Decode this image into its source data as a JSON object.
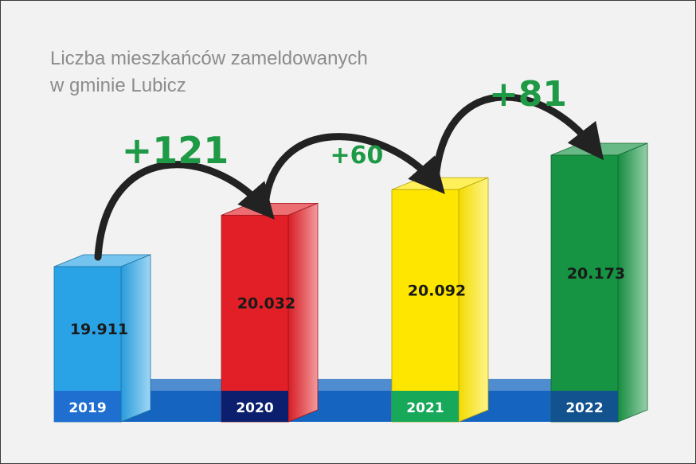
{
  "chart_data": {
    "type": "bar",
    "title_lines": [
      "Liczba mieszkańców zameldowanych",
      "w gminie Lubicz"
    ],
    "categories": [
      "2019",
      "2020",
      "2021",
      "2022"
    ],
    "values": [
      19911,
      20032,
      20092,
      20173
    ],
    "value_labels": [
      "19.911",
      "20.032",
      "20.092",
      "20.173"
    ],
    "bar_colors": [
      "#2aa3e6",
      "#e21f26",
      "#ffe600",
      "#169443"
    ],
    "year_box_colors": [
      "#1f6fd1",
      "#0b1f6e",
      "#17a85a",
      "#12538f"
    ],
    "differences": [
      {
        "from": "2019",
        "to": "2020",
        "label": "+121"
      },
      {
        "from": "2020",
        "to": "2021",
        "label": "+60"
      },
      {
        "from": "2021",
        "to": "2022",
        "label": "+81"
      }
    ],
    "colors": {
      "difference_label": "#1e9a46",
      "base_band": "#1565c0",
      "arrow": "#222222"
    }
  }
}
